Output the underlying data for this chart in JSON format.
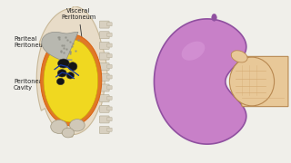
{
  "bg_color": "#f0efea",
  "left_bg": "#ffffff",
  "right_bg": "#f0ede0",
  "labels": {
    "parietal": "Pariteal\nPeritoneum",
    "peritoneal": "Peritoneal\nCavity",
    "visceral": "Visceral\nPeritoneum"
  },
  "colors": {
    "body_outline": "#c8b898",
    "body_fill": "#e8dcc8",
    "orange_layer": "#d86010",
    "orange_fill": "#e07828",
    "yellow_fill": "#f0d820",
    "gray_organ": "#b8b8b0",
    "gray_dark": "#787870",
    "dark_organ": "#202020",
    "blue_line": "#1838a0",
    "spine_fill": "#d8d0c0",
    "spine_outline": "#b0a890",
    "pelvis_fill": "#d0c8b8",
    "balloon_purple": "#c880c8",
    "balloon_edge": "#9050a0",
    "balloon_light": "#d898d8",
    "skin_light": "#e8c898",
    "skin_mid": "#d4a870",
    "skin_dark": "#b88850",
    "text_color": "#202020"
  },
  "font_size": 4.8,
  "label_font_size": 4.8
}
